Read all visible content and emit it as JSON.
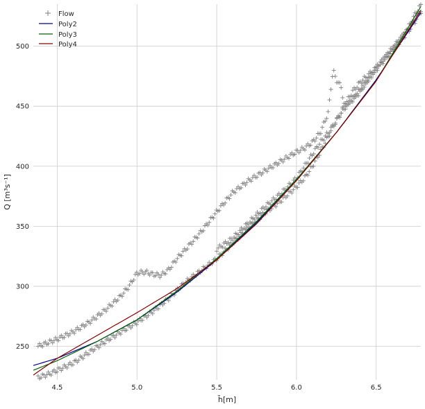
{
  "chart_data": {
    "type": "scatter",
    "title": "",
    "xlabel": "h̄[m]",
    "ylabel": "Q [m³s⁻¹]",
    "xlim": [
      4.35,
      6.78
    ],
    "ylim": [
      222,
      535
    ],
    "xticks": [
      4.5,
      5.0,
      5.5,
      6.0,
      6.5
    ],
    "xtick_labels": [
      "4.5",
      "5.0",
      "5.5",
      "6.0",
      "6.5"
    ],
    "yticks": [
      250,
      300,
      350,
      400,
      450,
      500
    ],
    "ytick_labels": [
      "250",
      "300",
      "350",
      "400",
      "450",
      "500"
    ],
    "grid": true,
    "legend_position": "top-left",
    "series": [
      {
        "name": "Flow",
        "kind": "marker",
        "marker": "plus",
        "color": "#808080",
        "branches": [
          {
            "x": [
              4.38,
              4.5,
              4.6,
              4.7,
              4.8,
              4.9,
              4.95,
              5.0,
              5.05,
              5.1,
              5.15,
              5.2,
              5.25,
              5.3,
              5.4,
              5.5,
              5.6,
              5.7,
              5.8,
              5.9,
              6.0,
              6.05,
              6.1,
              6.15,
              6.2,
              6.22,
              6.23,
              6.25,
              6.28,
              6.3,
              6.35,
              6.4,
              6.45,
              6.5,
              6.55,
              6.6,
              6.65,
              6.7,
              6.75,
              6.78
            ],
            "y": [
              250,
              256,
              262,
              270,
              280,
              292,
              300,
              311,
              312,
              310,
              309,
              314,
              323,
              330,
              345,
              362,
              378,
              388,
              396,
              404,
              412,
              415,
              420,
              428,
              445,
              470,
              480,
              472,
              466,
              450,
              455,
              462,
              472,
              482,
              490,
              497,
              505,
              515,
              528,
              534
            ]
          },
          {
            "x": [
              4.38,
              4.45,
              4.5,
              4.6,
              4.7,
              4.8,
              4.9,
              5.0,
              5.1,
              5.2,
              5.3,
              5.4,
              5.5,
              5.6,
              5.7,
              5.8,
              5.9,
              6.0,
              6.05,
              6.1,
              6.15,
              6.2,
              6.25,
              6.3,
              6.35,
              6.4,
              6.45,
              6.5,
              6.55,
              6.6,
              6.65,
              6.7,
              6.75,
              6.78
            ],
            "y": [
              224,
              227,
              230,
              236,
              245,
              254,
              262,
              270,
              279,
              290,
              303,
              313,
              323,
              336,
              349,
              361,
              371,
              383,
              390,
              400,
              412,
              425,
              438,
              450,
              462,
              470,
              476,
              482,
              488,
              496,
              504,
              512,
              522,
              529
            ]
          },
          {
            "x": [
              5.5,
              5.6,
              5.7,
              5.8,
              5.9,
              6.0,
              6.1,
              6.15,
              6.2,
              6.25,
              6.3,
              6.35,
              6.4,
              6.45,
              6.5,
              6.55,
              6.6,
              6.65,
              6.7,
              6.75,
              6.78
            ],
            "y": [
              331,
              340,
              353,
              366,
              377,
              390,
              410,
              420,
              428,
              438,
              448,
              456,
              464,
              472,
              480,
              490,
              498,
              506,
              514,
              524,
              530
            ]
          }
        ]
      },
      {
        "name": "Poly2",
        "kind": "line",
        "color": "#00008b",
        "x": [
          4.35,
          4.5,
          4.75,
          5.0,
          5.25,
          5.5,
          5.75,
          6.0,
          6.25,
          6.5,
          6.78
        ],
        "y": [
          234,
          240,
          254,
          272,
          295,
          322,
          353,
          388,
          428,
          472,
          528
        ]
      },
      {
        "name": "Poly3",
        "kind": "line",
        "color": "#006400",
        "x": [
          4.35,
          4.5,
          4.75,
          5.0,
          5.25,
          5.5,
          5.75,
          6.0,
          6.25,
          6.5,
          6.78
        ],
        "y": [
          230,
          238,
          254,
          272,
          296,
          323,
          354,
          389,
          428,
          471,
          533
        ]
      },
      {
        "name": "Poly4",
        "kind": "line",
        "color": "#8b0000",
        "x": [
          4.35,
          4.5,
          4.75,
          5.0,
          5.25,
          5.5,
          5.75,
          6.0,
          6.25,
          6.5,
          6.78
        ],
        "y": [
          226,
          240,
          259,
          278,
          298,
          322,
          352,
          388,
          428,
          471,
          530
        ]
      }
    ]
  }
}
